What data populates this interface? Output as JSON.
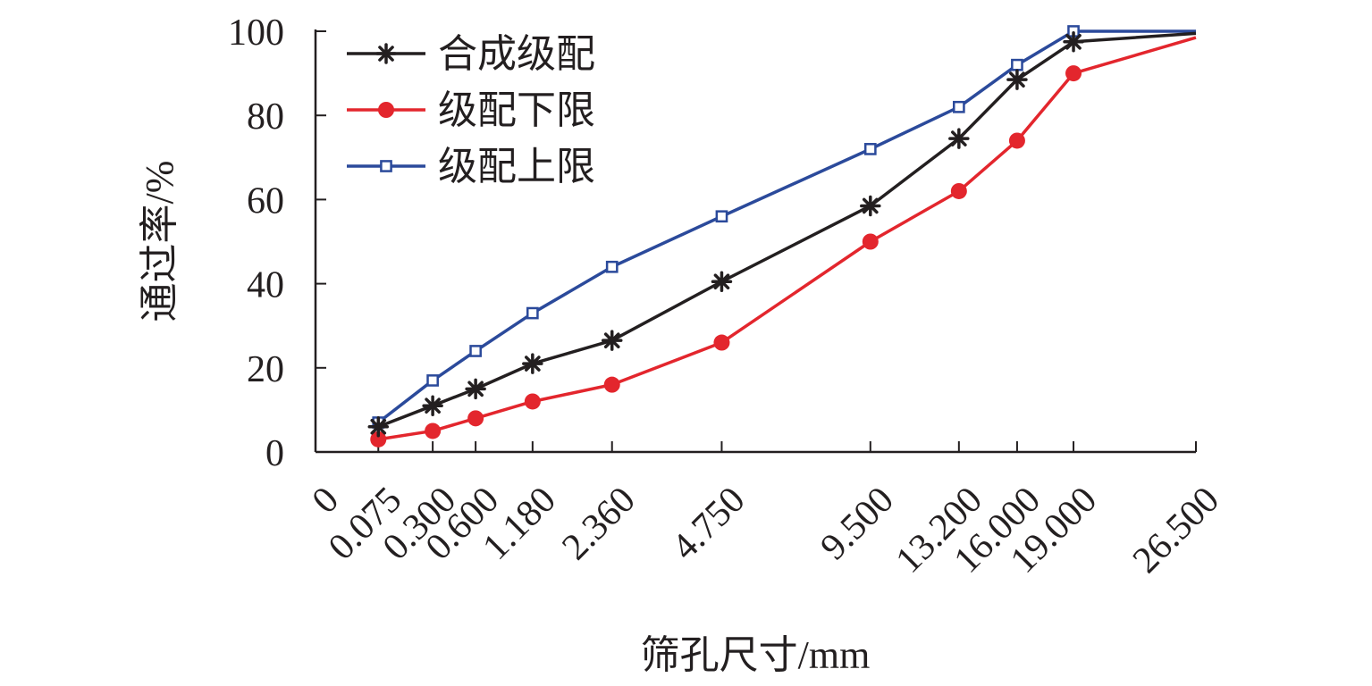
{
  "chart_data": {
    "type": "line",
    "xlabel": "筛孔尺寸/mm",
    "ylabel": "通过率/%",
    "ylim": [
      0,
      100
    ],
    "yticks": [
      "0",
      "20",
      "40",
      "60",
      "80",
      "100"
    ],
    "x_scale": "gradation power 0.45",
    "x_tick_labels": [
      "0",
      "0.075",
      "0.300",
      "0.600",
      "1.180",
      "2.360",
      "4.750",
      "9.500",
      "13.200",
      "16.000",
      "19.000",
      "26.500"
    ],
    "x": [
      0.075,
      0.3,
      0.6,
      1.18,
      2.36,
      4.75,
      9.5,
      13.2,
      16.0,
      19.0,
      26.5
    ],
    "grid": false,
    "legend_position": "top-left",
    "series": [
      {
        "name": "合成级配",
        "color": "#231f20",
        "marker": "asterisk",
        "values": [
          6,
          11,
          15,
          21,
          26.5,
          40.5,
          58.5,
          74.5,
          88.5,
          97.5,
          99.5
        ]
      },
      {
        "name": "级配下限",
        "color": "#e3262d",
        "marker": "filled-circle",
        "values": [
          3,
          5,
          8,
          12,
          16,
          26,
          50,
          62,
          74,
          90,
          98.5
        ]
      },
      {
        "name": "级配上限",
        "color": "#2b4a9b",
        "marker": "open-square",
        "values": [
          7,
          17,
          24,
          33,
          44,
          56,
          72,
          82,
          92,
          100,
          100
        ]
      }
    ]
  }
}
